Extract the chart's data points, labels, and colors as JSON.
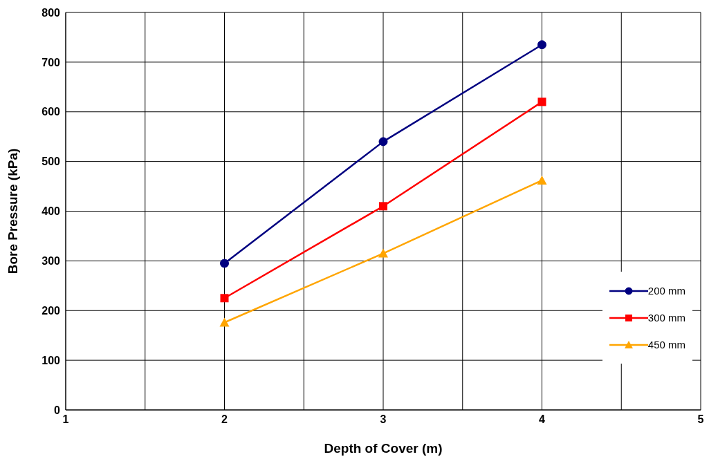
{
  "chart_data": {
    "type": "line",
    "xlabel": "Depth of Cover (m)",
    "ylabel": "Bore Pressure (kPa)",
    "xlim": [
      1,
      5
    ],
    "xticks": [
      1,
      {
        "value": 1.5,
        "label": null
      },
      2,
      {
        "value": 2.5,
        "label": null
      },
      3,
      {
        "value": 3.5,
        "label": null
      },
      4,
      {
        "value": 4.5,
        "label": null
      },
      5
    ],
    "ylim": [
      0,
      800
    ],
    "yticks": [
      0,
      100,
      200,
      300,
      400,
      500,
      600,
      700,
      800
    ],
    "grid": true,
    "legend": "right",
    "line_style": "solid",
    "x": [
      2,
      3,
      4
    ],
    "series": [
      {
        "name": "200 mm",
        "color": "#000080",
        "marker": "circle",
        "values": [
          295,
          540,
          735
        ]
      },
      {
        "name": "300 mm",
        "color": "#ff0000",
        "marker": "square",
        "values": [
          225,
          410,
          620
        ]
      },
      {
        "name": "450 mm",
        "color": "#ffa500",
        "marker": "triangle",
        "values": [
          176,
          315,
          462
        ]
      }
    ]
  }
}
